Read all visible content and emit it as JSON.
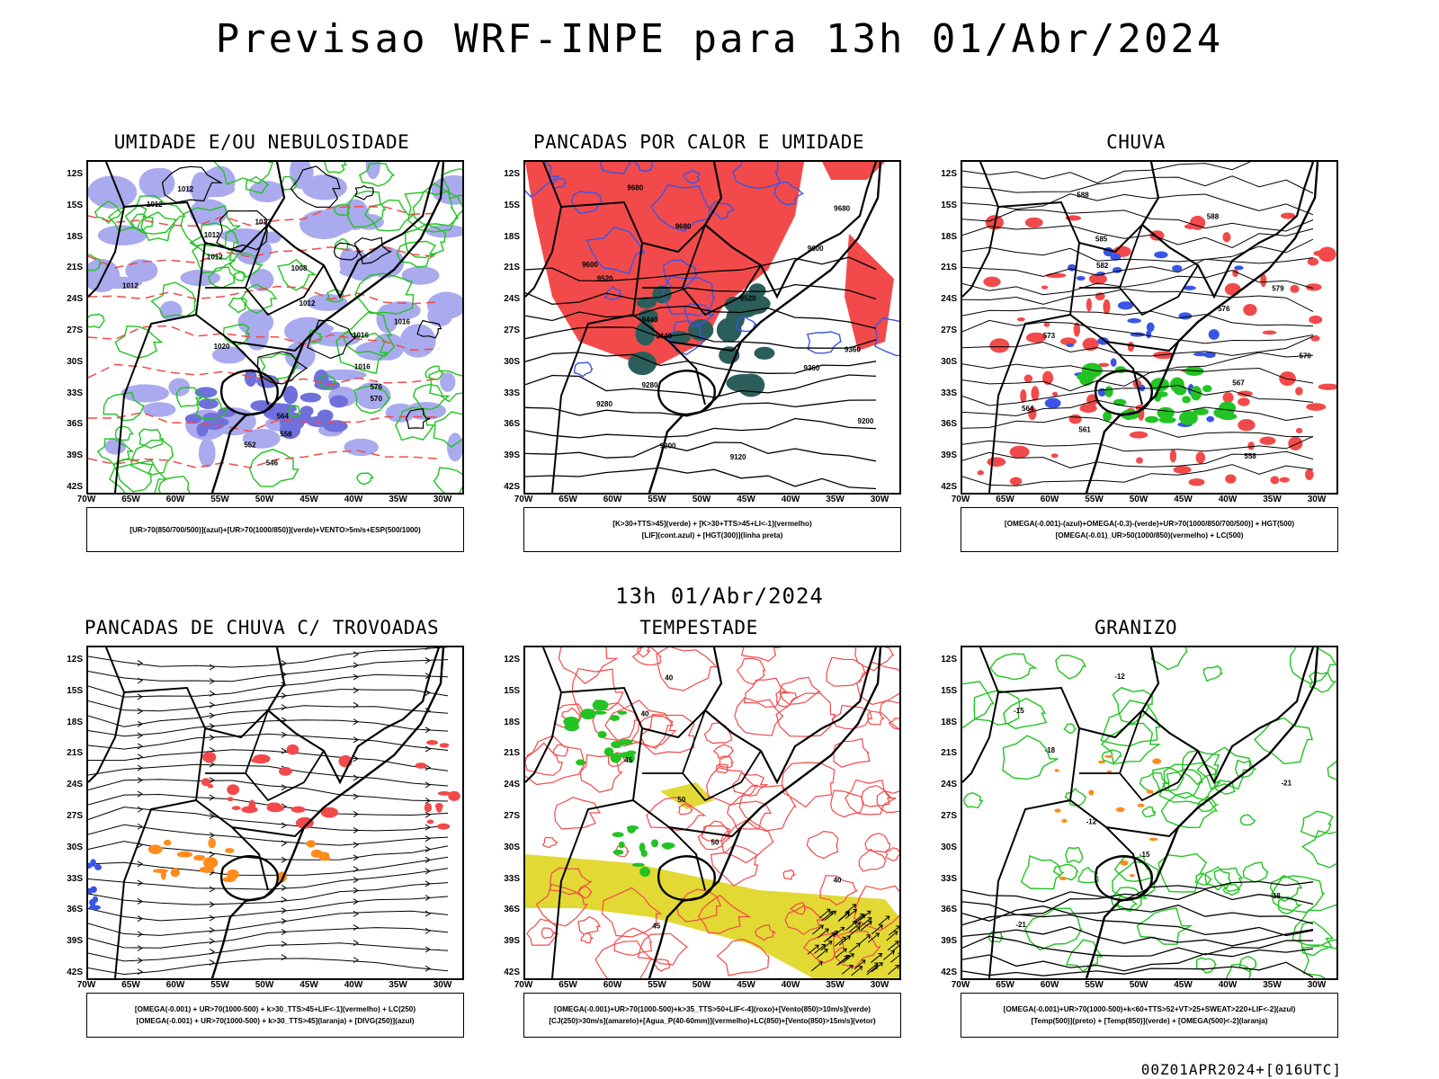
{
  "title": "Previsao WRF-INPE  para 13h 01/Abr/2024",
  "mid_title": "13h 01/Abr/2024",
  "footer": "00Z01APR2024+[016UTC]",
  "axes": {
    "lat": [
      "12S",
      "15S",
      "18S",
      "21S",
      "24S",
      "27S",
      "30S",
      "33S",
      "36S",
      "39S",
      "42S"
    ],
    "lon": [
      "70W",
      "65W",
      "60W",
      "55W",
      "50W",
      "45W",
      "40W",
      "35W",
      "30W"
    ]
  },
  "colors": {
    "blue": "#3a55e6",
    "green": "#22c322",
    "red": "#f24a4a",
    "orange": "#ff8c1a",
    "yellow": "#e2d935",
    "lavender": "#aaaaee",
    "teal": "#2b5e5a",
    "black": "#000000"
  },
  "panels": [
    {
      "id": "umidade",
      "title": "UMIDADE E/OU NEBULOSIDADE",
      "legend": [
        "[UR>70(850/700/500)](azul)+[UR>70(1000/850)](verde)+VENTO>5m/s+ESP(500/1000)"
      ],
      "contour_labels": [
        "1012",
        "1012",
        "1012",
        "1012",
        "1012",
        "1008",
        "1012",
        "1012",
        "1016",
        "1016",
        "1020",
        "1016",
        "576",
        "570",
        "564",
        "558",
        "552",
        "546"
      ]
    },
    {
      "id": "pancadas-calor",
      "title": "PANCADAS POR CALOR E UMIDADE",
      "legend": [
        "[K>30+TTS>45](verde) + [K>30+TTS>45+LI<-1](vermelho)",
        "[LIF](cont.azul) + [HGT(300)](linha preta)"
      ],
      "contour_labels": [
        "9680",
        "9680",
        "9680",
        "9600",
        "9600",
        "9520",
        "9520",
        "9440",
        "9440",
        "9360",
        "9360",
        "9280",
        "9280",
        "9200",
        "9200",
        "9120"
      ]
    },
    {
      "id": "chuva",
      "title": "CHUVA",
      "legend": [
        "[OMEGA(-0.001)-(azul)+OMEGA(-0.3)-(verde)+UR>70(1000/850/700/500)] + HGT(500)",
        "[OMEGA(-0.01)_UR>50(1000/850)(vermelho) + LC(500)"
      ],
      "contour_labels": [
        "588",
        "588",
        "585",
        "582",
        "579",
        "576",
        "573",
        "570",
        "567",
        "564",
        "561",
        "558"
      ]
    },
    {
      "id": "trovoadas",
      "title": "PANCADAS DE CHUVA C/ TROVOADAS",
      "legend": [
        "[OMEGA(-0.001) + UR>70(1000-500) + k>30_TTS>45+LIF<-1](vermelho) + LC(250)",
        "[OMEGA(-0.001) + UR>70(1000-500) + k>30_TTS>45](laranja) + [DIVG(250)](azul)"
      ],
      "contour_labels": []
    },
    {
      "id": "tempestade",
      "title": "TEMPESTADE",
      "legend": [
        "[OMEGA(-0.001)+UR>70(1000-500)+k>35_TTS>50+LIF<-4](roxo)+[Vento(850)>10m/s](verde)",
        "[CJ(250)>30m/s](amarelo)+[Agua_P(40-60mm)](vermelho)+LC(850)+[Vento(850)>15m/s](vetor)"
      ],
      "contour_labels": [
        "40",
        "40",
        "45",
        "50",
        "50",
        "40",
        "45"
      ]
    },
    {
      "id": "granizo",
      "title": "GRANIZO",
      "legend": [
        "[OMEGA(-0.001)+UR>70(1000-500)+k<60+TTS>52+VT>25+SWEAT>220+LIF<-2](azul)",
        "[Temp(500)](preto) + [Temp(850)](verde) + [OMEGA(500)<-2](laranja)"
      ],
      "contour_labels": [
        "-12",
        "-15",
        "-18",
        "-21",
        "-12",
        "-15",
        "-18",
        "-21"
      ]
    }
  ]
}
